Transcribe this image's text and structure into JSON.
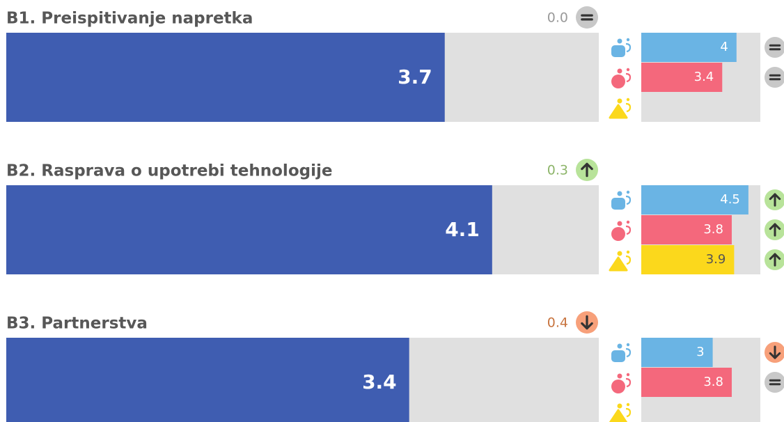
{
  "xlim": [
    0,
    5
  ],
  "sections": [
    {
      "title": "B1. Preispitivanje napretka",
      "value": 3.7,
      "change": {
        "value": 0,
        "label": "0.0"
      },
      "trend": "same",
      "groups": [
        {
          "value": 4,
          "color": "#6ab4e4",
          "label_color": "#ffffff",
          "trend": "same"
        },
        {
          "value": 3.4,
          "color": "#f4687c",
          "label_color": "#ffffff",
          "trend": "same"
        },
        {
          "value": null,
          "color": "#fbd81c",
          "label_color": "#555555",
          "trend": null
        }
      ]
    },
    {
      "title": "B2. Rasprava o upotrebi tehnologije",
      "value": 4.1,
      "change": 0.3,
      "trend": "up",
      "groups": [
        {
          "value": 4.5,
          "color": "#6ab4e4",
          "label_color": "#ffffff",
          "trend": "up"
        },
        {
          "value": 3.8,
          "color": "#f4687c",
          "label_color": "#ffffff",
          "trend": "up"
        },
        {
          "value": 3.9,
          "color": "#fbd81c",
          "label_color": "#555555",
          "trend": "up"
        }
      ]
    },
    {
      "title": "B3. Partnerstva",
      "value": 3.4,
      "change": 0.4,
      "trend": "down",
      "groups": [
        {
          "value": 3,
          "color": "#6ab4e4",
          "label_color": "#ffffff",
          "trend": "down"
        },
        {
          "value": 3.8,
          "color": "#f4687c",
          "label_color": "#ffffff",
          "trend": "same"
        },
        {
          "value": null,
          "color": "#fbd81c",
          "label_color": "#555555",
          "trend": null
        }
      ]
    }
  ]
}
